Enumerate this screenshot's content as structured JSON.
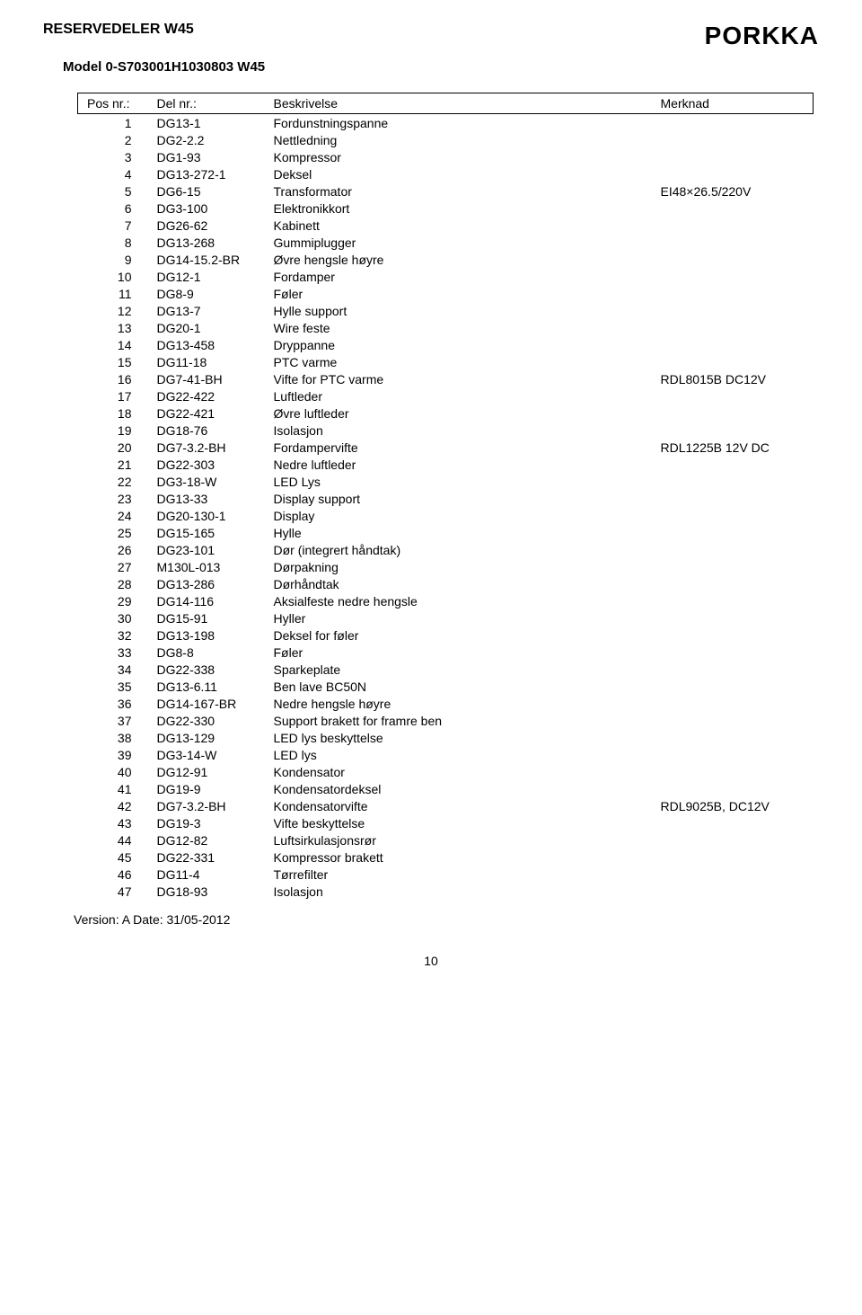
{
  "header": {
    "doc_title": "RESERVEDELER W45",
    "brand": "PORKKA",
    "model_line": "Model 0-S703001H1030803 W45"
  },
  "table": {
    "columns": {
      "pos": "Pos nr.:",
      "del": "Del nr.:",
      "besk": "Beskrivelse",
      "merk": "Merknad"
    },
    "rows": [
      {
        "pos": "1",
        "del": "DG13-1",
        "besk": "Fordunstningspanne",
        "merk": ""
      },
      {
        "pos": "2",
        "del": "DG2-2.2",
        "besk": "Nettledning",
        "merk": ""
      },
      {
        "pos": "3",
        "del": "DG1-93",
        "besk": "Kompressor",
        "merk": ""
      },
      {
        "pos": "4",
        "del": "DG13-272-1",
        "besk": "Deksel",
        "merk": ""
      },
      {
        "pos": "5",
        "del": "DG6-15",
        "besk": "Transformator",
        "merk": "EI48×26.5/220V"
      },
      {
        "pos": "6",
        "del": "DG3-100",
        "besk": "Elektronikkort",
        "merk": ""
      },
      {
        "pos": "7",
        "del": "DG26-62",
        "besk": "Kabinett",
        "merk": ""
      },
      {
        "pos": "8",
        "del": "DG13-268",
        "besk": "Gummiplugger",
        "merk": ""
      },
      {
        "pos": "9",
        "del": "DG14-15.2-BR",
        "besk": "Øvre hengsle høyre",
        "merk": ""
      },
      {
        "pos": "10",
        "del": "DG12-1",
        "besk": "Fordamper",
        "merk": ""
      },
      {
        "pos": "11",
        "del": "DG8-9",
        "besk": "Føler",
        "merk": ""
      },
      {
        "pos": "12",
        "del": "DG13-7",
        "besk": "Hylle support",
        "merk": ""
      },
      {
        "pos": "13",
        "del": "DG20-1",
        "besk": "Wire feste",
        "merk": ""
      },
      {
        "pos": "14",
        "del": "DG13-458",
        "besk": "Dryppanne",
        "merk": ""
      },
      {
        "pos": "15",
        "del": "DG11-18",
        "besk": "PTC varme",
        "merk": ""
      },
      {
        "pos": "16",
        "del": "DG7-41-BH",
        "besk": "Vifte for PTC varme",
        "merk": "RDL8015B DC12V"
      },
      {
        "pos": "17",
        "del": "DG22-422",
        "besk": "Luftleder",
        "merk": ""
      },
      {
        "pos": "18",
        "del": "DG22-421",
        "besk": "Øvre luftleder",
        "merk": ""
      },
      {
        "pos": "19",
        "del": "DG18-76",
        "besk": "Isolasjon",
        "merk": ""
      },
      {
        "pos": "20",
        "del": "DG7-3.2-BH",
        "besk": "Fordampervifte",
        "merk": "RDL1225B 12V DC"
      },
      {
        "pos": "21",
        "del": "DG22-303",
        "besk": "Nedre luftleder",
        "merk": ""
      },
      {
        "pos": "22",
        "del": "DG3-18-W",
        "besk": "LED Lys",
        "merk": ""
      },
      {
        "pos": "23",
        "del": "DG13-33",
        "besk": "Display support",
        "merk": ""
      },
      {
        "pos": "24",
        "del": "DG20-130-1",
        "besk": "Display",
        "merk": ""
      },
      {
        "pos": "25",
        "del": "DG15-165",
        "besk": "Hylle",
        "merk": ""
      },
      {
        "pos": "26",
        "del": "DG23-101",
        "besk": "Dør (integrert håndtak)",
        "merk": ""
      },
      {
        "pos": "27",
        "del": "M130L-013",
        "besk": "Dørpakning",
        "merk": ""
      },
      {
        "pos": "28",
        "del": "DG13-286",
        "besk": "Dørhåndtak",
        "merk": ""
      },
      {
        "pos": "29",
        "del": "DG14-116",
        "besk": "Aksialfeste nedre hengsle",
        "merk": ""
      },
      {
        "pos": "30",
        "del": "DG15-91",
        "besk": "Hyller",
        "merk": ""
      },
      {
        "pos": "32",
        "del": "DG13-198",
        "besk": "Deksel for føler",
        "merk": ""
      },
      {
        "pos": "33",
        "del": "DG8-8",
        "besk": "Føler",
        "merk": ""
      },
      {
        "pos": "34",
        "del": "DG22-338",
        "besk": "Sparkeplate",
        "merk": ""
      },
      {
        "pos": "35",
        "del": "DG13-6.11",
        "besk": "Ben lave BC50N",
        "merk": ""
      },
      {
        "pos": "36",
        "del": "DG14-167-BR",
        "besk": "Nedre hengsle høyre",
        "merk": ""
      },
      {
        "pos": "37",
        "del": "DG22-330",
        "besk": "Support brakett for framre ben",
        "merk": ""
      },
      {
        "pos": "38",
        "del": "DG13-129",
        "besk": "LED lys beskyttelse",
        "merk": ""
      },
      {
        "pos": "39",
        "del": "DG3-14-W",
        "besk": "LED lys",
        "merk": ""
      },
      {
        "pos": "40",
        "del": "DG12-91",
        "besk": "Kondensator",
        "merk": ""
      },
      {
        "pos": "41",
        "del": "DG19-9",
        "besk": "Kondensatordeksel",
        "merk": ""
      },
      {
        "pos": "42",
        "del": "DG7-3.2-BH",
        "besk": "Kondensatorvifte",
        "merk": "RDL9025B, DC12V"
      },
      {
        "pos": "43",
        "del": "DG19-3",
        "besk": "Vifte beskyttelse",
        "merk": ""
      },
      {
        "pos": "44",
        "del": "DG12-82",
        "besk": "Luftsirkulasjonsrør",
        "merk": ""
      },
      {
        "pos": "45",
        "del": "DG22-331",
        "besk": "Kompressor brakett",
        "merk": ""
      },
      {
        "pos": "46",
        "del": "DG11-4",
        "besk": "Tørrefilter",
        "merk": ""
      },
      {
        "pos": "47",
        "del": "DG18-93",
        "besk": "Isolasjon",
        "merk": ""
      }
    ]
  },
  "footer": {
    "version_line": "Version: A  Date: 31/05-2012",
    "page_number": "10"
  }
}
